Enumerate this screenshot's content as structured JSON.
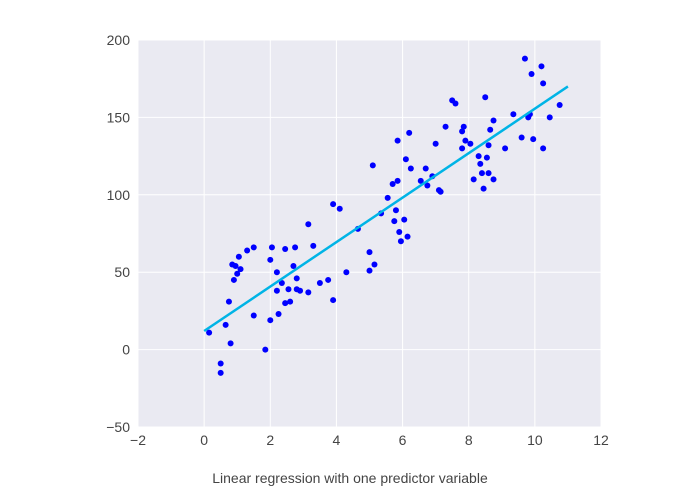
{
  "chart_data": {
    "type": "scatter",
    "title": "",
    "xlabel": "",
    "ylabel": "",
    "caption": "Linear regression with one predictor variable",
    "xlim": [
      -2,
      12
    ],
    "ylim": [
      -50,
      200
    ],
    "xticks": [
      -2,
      0,
      2,
      4,
      6,
      8,
      10,
      12
    ],
    "yticks": [
      -50,
      0,
      50,
      100,
      150,
      200
    ],
    "xtick_labels": [
      "−2",
      "0",
      "2",
      "4",
      "6",
      "8",
      "10",
      "12"
    ],
    "ytick_labels": [
      "−50",
      "0",
      "50",
      "100",
      "150",
      "200"
    ],
    "grid": true,
    "background_color": "#eaeaf2",
    "grid_color": "#ffffff",
    "point_color": "#0000ff",
    "line_color": "#00b4e6",
    "series": [
      {
        "kind": "points",
        "points": [
          [
            0.15,
            11
          ],
          [
            0.5,
            -9
          ],
          [
            0.5,
            -15
          ],
          [
            0.65,
            16
          ],
          [
            0.75,
            31
          ],
          [
            0.8,
            4
          ],
          [
            0.85,
            55
          ],
          [
            0.9,
            45
          ],
          [
            0.95,
            54
          ],
          [
            1.0,
            49
          ],
          [
            1.05,
            60
          ],
          [
            1.1,
            52
          ],
          [
            1.3,
            64
          ],
          [
            1.5,
            66
          ],
          [
            1.5,
            22
          ],
          [
            1.85,
            0
          ],
          [
            2.0,
            58
          ],
          [
            2.0,
            19
          ],
          [
            2.05,
            66
          ],
          [
            2.2,
            50
          ],
          [
            2.2,
            38
          ],
          [
            2.25,
            23
          ],
          [
            2.35,
            43
          ],
          [
            2.45,
            30
          ],
          [
            2.45,
            65
          ],
          [
            2.55,
            39
          ],
          [
            2.6,
            31
          ],
          [
            2.7,
            54
          ],
          [
            2.75,
            66
          ],
          [
            2.8,
            46
          ],
          [
            2.8,
            39
          ],
          [
            2.9,
            38
          ],
          [
            3.15,
            37
          ],
          [
            3.15,
            81
          ],
          [
            3.3,
            67
          ],
          [
            3.5,
            43
          ],
          [
            3.75,
            45
          ],
          [
            3.9,
            32
          ],
          [
            3.9,
            94
          ],
          [
            4.1,
            91
          ],
          [
            4.3,
            50
          ],
          [
            4.65,
            78
          ],
          [
            5.0,
            51
          ],
          [
            5.0,
            63
          ],
          [
            5.1,
            119
          ],
          [
            5.15,
            55
          ],
          [
            5.35,
            88
          ],
          [
            5.55,
            98
          ],
          [
            5.7,
            107
          ],
          [
            5.75,
            83
          ],
          [
            5.8,
            90
          ],
          [
            5.85,
            109
          ],
          [
            5.85,
            135
          ],
          [
            5.9,
            76
          ],
          [
            5.95,
            70
          ],
          [
            6.05,
            84
          ],
          [
            6.1,
            123
          ],
          [
            6.15,
            73
          ],
          [
            6.2,
            140
          ],
          [
            6.25,
            117
          ],
          [
            6.55,
            109
          ],
          [
            6.7,
            117
          ],
          [
            6.75,
            106
          ],
          [
            6.9,
            112
          ],
          [
            7.0,
            133
          ],
          [
            7.1,
            103
          ],
          [
            7.15,
            102
          ],
          [
            7.3,
            144
          ],
          [
            7.5,
            161
          ],
          [
            7.6,
            159
          ],
          [
            7.8,
            130
          ],
          [
            7.8,
            141
          ],
          [
            7.85,
            144
          ],
          [
            7.9,
            135
          ],
          [
            8.05,
            133
          ],
          [
            8.15,
            110
          ],
          [
            8.3,
            125
          ],
          [
            8.35,
            120
          ],
          [
            8.4,
            114
          ],
          [
            8.45,
            104
          ],
          [
            8.5,
            163
          ],
          [
            8.55,
            124
          ],
          [
            8.6,
            132
          ],
          [
            8.6,
            114
          ],
          [
            8.65,
            142
          ],
          [
            8.75,
            148
          ],
          [
            8.75,
            110
          ],
          [
            9.1,
            130
          ],
          [
            9.35,
            152
          ],
          [
            9.6,
            137
          ],
          [
            9.7,
            188
          ],
          [
            9.8,
            150
          ],
          [
            9.85,
            152
          ],
          [
            9.9,
            178
          ],
          [
            9.95,
            136
          ],
          [
            10.2,
            183
          ],
          [
            10.25,
            172
          ],
          [
            10.25,
            130
          ],
          [
            10.45,
            150
          ],
          [
            10.75,
            158
          ]
        ]
      },
      {
        "kind": "regression-line",
        "x": [
          0.0,
          11.0
        ],
        "y": [
          12,
          170
        ]
      }
    ]
  }
}
